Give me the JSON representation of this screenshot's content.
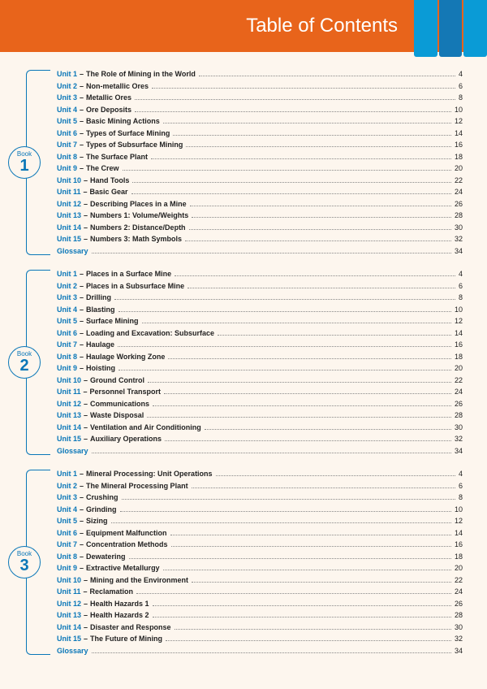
{
  "header": {
    "title": "Table of Contents",
    "bg_color": "#e8641b",
    "title_color": "#ffffff",
    "accent_colors": [
      "#0a9bd6",
      "#1478b5",
      "#0a9bd6"
    ]
  },
  "page": {
    "bg_color": "#fdf6ee",
    "accent_color": "#0a77b8"
  },
  "book_label": "Book",
  "books": [
    {
      "number": "1",
      "entries": [
        {
          "unit": "Unit 1",
          "title": "The Role of Mining in the World",
          "page": "4"
        },
        {
          "unit": "Unit 2",
          "title": "Non-metallic Ores",
          "page": "6"
        },
        {
          "unit": "Unit 3",
          "title": "Metallic Ores",
          "page": "8"
        },
        {
          "unit": "Unit 4",
          "title": "Ore Deposits",
          "page": "10"
        },
        {
          "unit": "Unit 5",
          "title": "Basic Mining Actions",
          "page": "12"
        },
        {
          "unit": "Unit 6",
          "title": "Types of Surface Mining",
          "page": "14"
        },
        {
          "unit": "Unit 7",
          "title": "Types of Subsurface Mining",
          "page": "16"
        },
        {
          "unit": "Unit 8",
          "title": "The Surface Plant",
          "page": "18"
        },
        {
          "unit": "Unit 9",
          "title": "The Crew",
          "page": "20"
        },
        {
          "unit": "Unit 10",
          "title": "Hand Tools",
          "page": "22"
        },
        {
          "unit": "Unit 11",
          "title": "Basic Gear",
          "page": "24"
        },
        {
          "unit": "Unit 12",
          "title": "Describing Places in a Mine",
          "page": "26"
        },
        {
          "unit": "Unit 13",
          "title": "Numbers 1: Volume/Weights",
          "page": "28"
        },
        {
          "unit": "Unit 14",
          "title": "Numbers 2: Distance/Depth",
          "page": "30"
        },
        {
          "unit": "Unit 15",
          "title": "Numbers 3: Math Symbols",
          "page": "32"
        },
        {
          "unit": "Glossary",
          "title": "",
          "page": "34"
        }
      ]
    },
    {
      "number": "2",
      "entries": [
        {
          "unit": "Unit 1",
          "title": "Places in a Surface Mine",
          "page": "4"
        },
        {
          "unit": "Unit 2",
          "title": "Places in a Subsurface Mine",
          "page": "6"
        },
        {
          "unit": "Unit 3",
          "title": "Drilling",
          "page": "8"
        },
        {
          "unit": "Unit 4",
          "title": "Blasting",
          "page": "10"
        },
        {
          "unit": "Unit 5",
          "title": "Surface Mining",
          "page": "12"
        },
        {
          "unit": "Unit 6",
          "title": "Loading and Excavation: Subsurface",
          "page": "14"
        },
        {
          "unit": "Unit 7",
          "title": "Haulage",
          "page": "16"
        },
        {
          "unit": "Unit 8",
          "title": "Haulage Working Zone",
          "page": "18"
        },
        {
          "unit": "Unit 9",
          "title": "Hoisting",
          "page": "20"
        },
        {
          "unit": "Unit 10",
          "title": "Ground Control",
          "page": "22"
        },
        {
          "unit": "Unit 11",
          "title": "Personnel Transport",
          "page": "24"
        },
        {
          "unit": "Unit 12",
          "title": "Communications",
          "page": "26"
        },
        {
          "unit": "Unit 13",
          "title": "Waste Disposal",
          "page": "28"
        },
        {
          "unit": "Unit 14",
          "title": "Ventilation and Air Conditioning",
          "page": "30"
        },
        {
          "unit": "Unit 15",
          "title": "Auxiliary Operations",
          "page": "32"
        },
        {
          "unit": "Glossary",
          "title": "",
          "page": "34"
        }
      ]
    },
    {
      "number": "3",
      "entries": [
        {
          "unit": "Unit 1",
          "title": "Mineral Processing: Unit Operations",
          "page": "4"
        },
        {
          "unit": "Unit 2",
          "title": "The Mineral Processing Plant",
          "page": "6"
        },
        {
          "unit": "Unit 3",
          "title": "Crushing",
          "page": "8"
        },
        {
          "unit": "Unit 4",
          "title": "Grinding",
          "page": "10"
        },
        {
          "unit": "Unit 5",
          "title": "Sizing",
          "page": "12"
        },
        {
          "unit": "Unit 6",
          "title": "Equipment Malfunction",
          "page": "14"
        },
        {
          "unit": "Unit 7",
          "title": "Concentration Methods",
          "page": "16"
        },
        {
          "unit": "Unit 8",
          "title": "Dewatering",
          "page": "18"
        },
        {
          "unit": "Unit 9",
          "title": "Extractive Metallurgy",
          "page": "20"
        },
        {
          "unit": "Unit 10",
          "title": "Mining and the Environment",
          "page": "22"
        },
        {
          "unit": "Unit 11",
          "title": "Reclamation",
          "page": "24"
        },
        {
          "unit": "Unit 12",
          "title": "Health Hazards 1",
          "page": "26"
        },
        {
          "unit": "Unit 13",
          "title": "Health Hazards 2",
          "page": "28"
        },
        {
          "unit": "Unit 14",
          "title": "Disaster and Response",
          "page": "30"
        },
        {
          "unit": "Unit 15",
          "title": "The Future of Mining",
          "page": "32"
        },
        {
          "unit": "Glossary",
          "title": "",
          "page": "34"
        }
      ]
    }
  ]
}
